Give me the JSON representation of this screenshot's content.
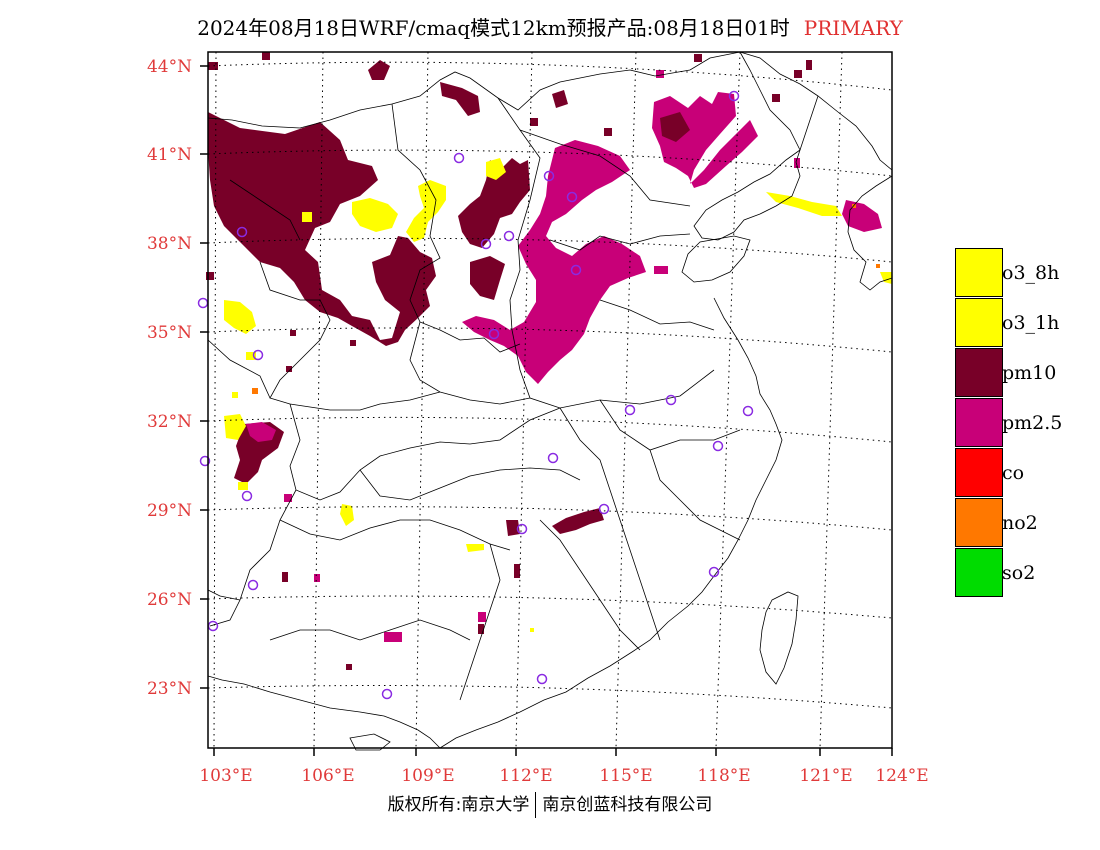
{
  "title": {
    "main": "2024年08月18日WRF/cmaq模式12km预报产品:08月18日01时",
    "tag": "PRIMARY",
    "tag_color": "#e03030"
  },
  "map": {
    "lat_labels": [
      "44°N",
      "41°N",
      "38°N",
      "35°N",
      "32°N",
      "29°N",
      "26°N",
      "23°N"
    ],
    "lon_labels": [
      "103°E",
      "106°E",
      "109°E",
      "112°E",
      "115°E",
      "118°E",
      "121°E",
      "124°E"
    ],
    "label_color": "#e03a3a",
    "station_marker_color": "#8a2be2",
    "station_marker_icon": "circle-icon",
    "grid_style": "dotted"
  },
  "legend": [
    {
      "label": "o3_8h",
      "color": "#ffff00"
    },
    {
      "label": "o3_1h",
      "color": "#ffff00"
    },
    {
      "label": "pm10",
      "color": "#780028"
    },
    {
      "label": "pm2.5",
      "color": "#c80078"
    },
    {
      "label": "co",
      "color": "#ff0000"
    },
    {
      "label": "no2",
      "color": "#ff7800"
    },
    {
      "label": "so2",
      "color": "#00dc00"
    }
  ],
  "footer": {
    "left": "版权所有:南京大学",
    "right": "南京创蓝科技有限公司"
  }
}
